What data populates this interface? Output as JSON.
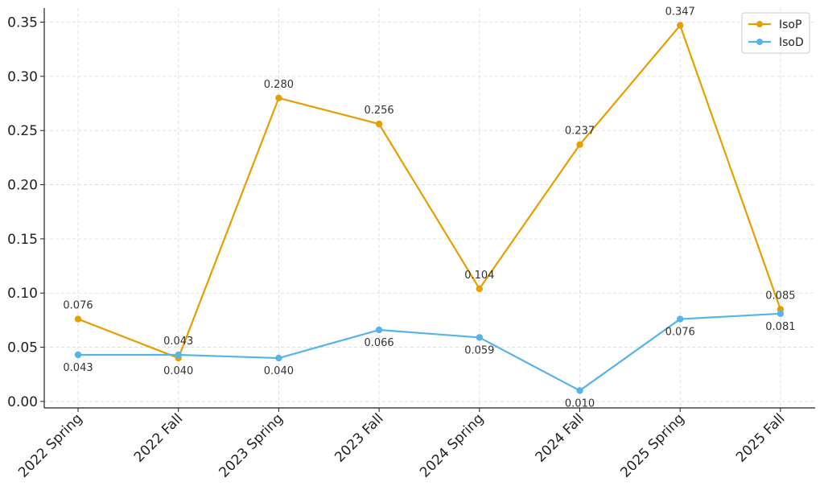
{
  "chart_data": {
    "type": "line",
    "categories": [
      "2022 Spring",
      "2022 Fall",
      "2023 Spring",
      "2023 Fall",
      "2024 Spring",
      "2024 Fall",
      "2025 Spring",
      "2025 Fall"
    ],
    "series": [
      {
        "name": "IsoP",
        "color": "#E69F00",
        "values": [
          0.076,
          0.04,
          0.28,
          0.256,
          0.104,
          0.237,
          0.347,
          0.085
        ],
        "labels": [
          "0.076",
          "0.040",
          "0.280",
          "0.256",
          "0.104",
          "0.237",
          "0.347",
          "0.085"
        ]
      },
      {
        "name": "IsoD",
        "color": "#56B4E9",
        "values": [
          0.043,
          0.043,
          0.04,
          0.066,
          0.059,
          0.01,
          0.076,
          0.081
        ],
        "labels": [
          "0.043",
          "0.043",
          "0.040",
          "0.066",
          "0.059",
          "0.010",
          "0.076",
          "0.081"
        ]
      }
    ],
    "yticks": [
      "0.00",
      "0.05",
      "0.10",
      "0.15",
      "0.20",
      "0.25",
      "0.30",
      "0.35"
    ],
    "ylim": [
      -0.006,
      0.363
    ],
    "grid": true,
    "legend": "top-right"
  }
}
